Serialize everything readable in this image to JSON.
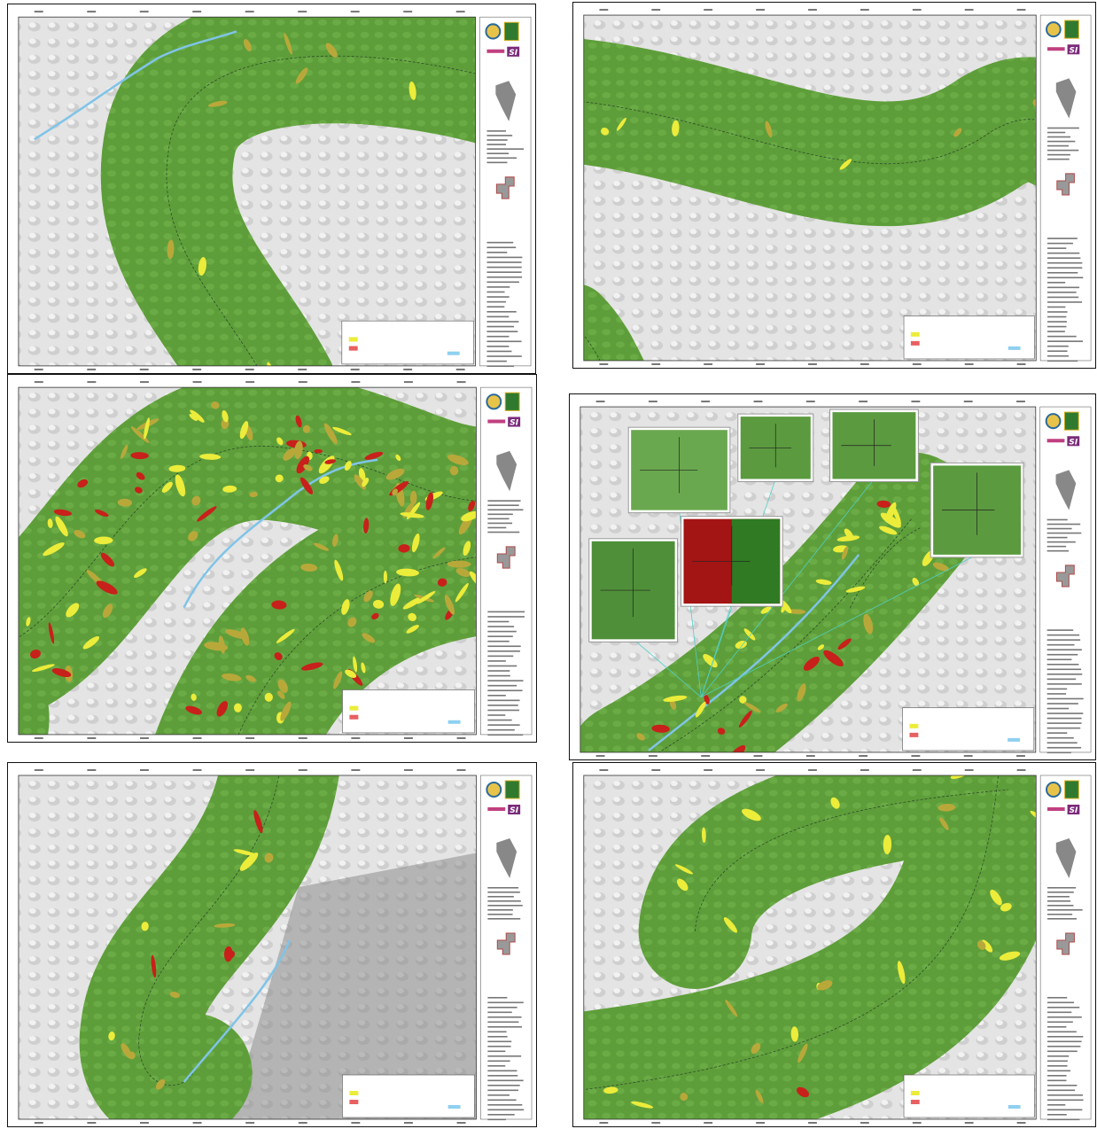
{
  "logo": "SI"
}
